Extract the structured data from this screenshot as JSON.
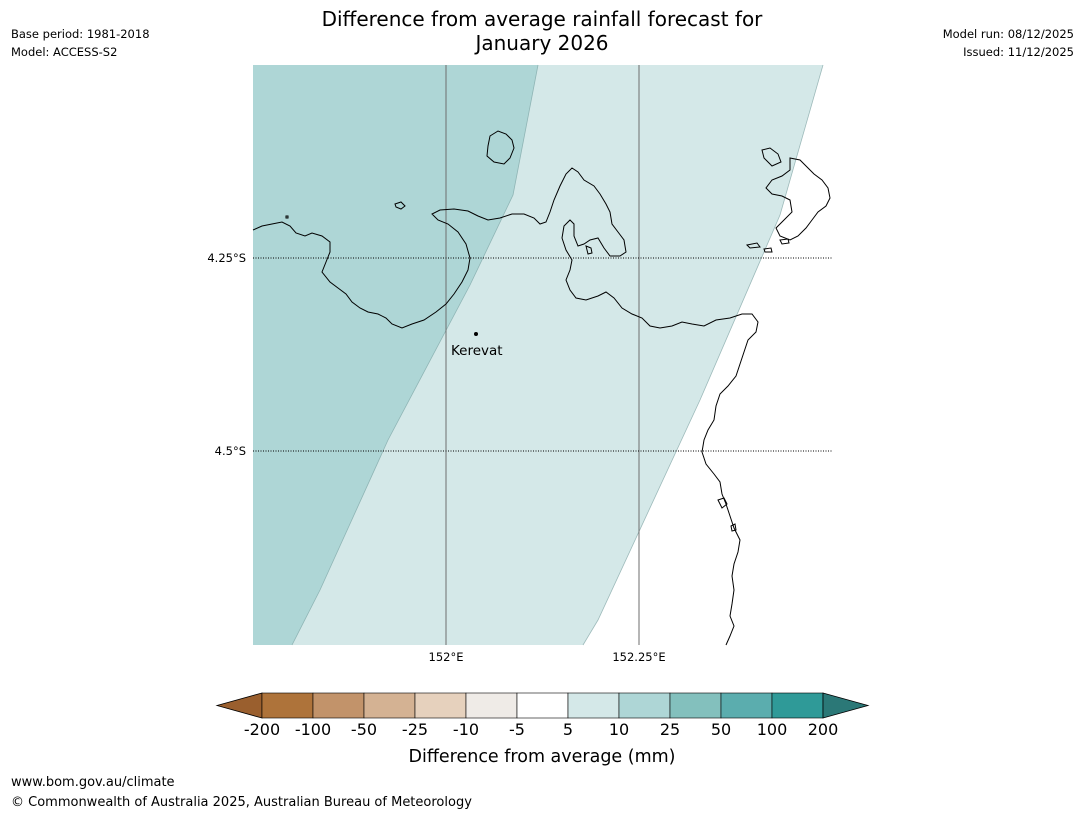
{
  "header": {
    "title_line1": "Difference from average rainfall forecast for",
    "title_line2": "January 2026",
    "base_period": "Base period: 1981-2018",
    "model": "Model: ACCESS-S2",
    "model_run": "Model run: 08/12/2025",
    "issued": "Issued: 11/12/2025"
  },
  "map": {
    "lat_labels": [
      "4.25°S",
      "4.5°S"
    ],
    "lon_labels": [
      "152°E",
      "152.25°E"
    ],
    "place": {
      "name": "Kerevat"
    },
    "colors": {
      "band_10_25": "#aed6d6",
      "band_5_10": "#d4e8e8",
      "coast": "#000000",
      "meridian": "#6e6e6e"
    }
  },
  "colorbar": {
    "title": "Difference from average (mm)",
    "ticks": [
      "-200",
      "-100",
      "-50",
      "-25",
      "-10",
      "-5",
      "5",
      "10",
      "25",
      "50",
      "100",
      "200"
    ],
    "colors": [
      "#9a5f2e",
      "#ae733a",
      "#c2936a",
      "#d4b293",
      "#e6d1bd",
      "#efebe7",
      "#ffffff",
      "#d4e8e8",
      "#aed6d6",
      "#83c0bd",
      "#5badae",
      "#2f9a98",
      "#2b7877"
    ]
  },
  "footer": {
    "url": "www.bom.gov.au/climate",
    "copyright": "© Commonwealth of Australia 2025, Australian Bureau of Meteorology"
  }
}
